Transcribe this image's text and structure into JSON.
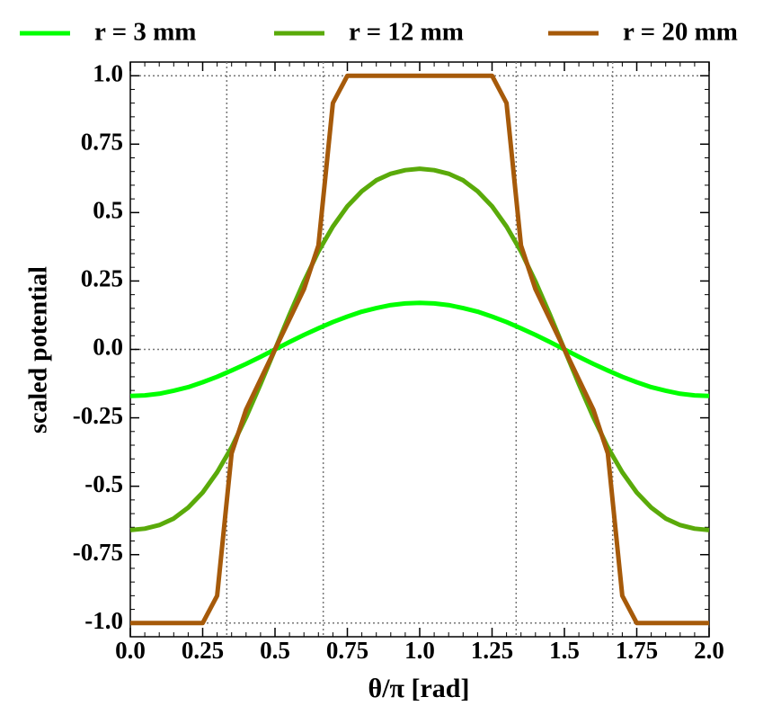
{
  "chart_data": {
    "type": "line",
    "xlabel": "θ/π [rad]",
    "ylabel": "scaled potential",
    "x": [
      0,
      0.05,
      0.1,
      0.15,
      0.2,
      0.25,
      0.3,
      0.35,
      0.4,
      0.45,
      0.5,
      0.55,
      0.6,
      0.65,
      0.7,
      0.75,
      0.8,
      0.85,
      0.9,
      0.95,
      1,
      1.05,
      1.1,
      1.15,
      1.2,
      1.25,
      1.3,
      1.35,
      1.4,
      1.45,
      1.5,
      1.55,
      1.6,
      1.65,
      1.7,
      1.75,
      1.8,
      1.85,
      1.9,
      1.95,
      2
    ],
    "series": [
      {
        "name": "r = 3 mm",
        "color": "#00ff00",
        "values": [
          -0.17,
          -0.168,
          -0.162,
          -0.151,
          -0.138,
          -0.12,
          -0.1,
          -0.077,
          -0.053,
          -0.027,
          0,
          0.027,
          0.053,
          0.077,
          0.1,
          0.12,
          0.138,
          0.151,
          0.162,
          0.168,
          0.17,
          0.168,
          0.162,
          0.151,
          0.138,
          0.12,
          0.1,
          0.077,
          0.053,
          0.027,
          0,
          -0.027,
          -0.053,
          -0.077,
          -0.1,
          -0.12,
          -0.138,
          -0.151,
          -0.162,
          -0.168,
          -0.17
        ]
      },
      {
        "name": "r = 12 mm",
        "color": "#5aaa0a",
        "values": [
          -0.66,
          -0.655,
          -0.642,
          -0.618,
          -0.578,
          -0.523,
          -0.449,
          -0.358,
          -0.248,
          -0.127,
          0,
          0.127,
          0.248,
          0.358,
          0.449,
          0.523,
          0.578,
          0.618,
          0.642,
          0.655,
          0.66,
          0.655,
          0.642,
          0.618,
          0.578,
          0.523,
          0.449,
          0.358,
          0.248,
          0.127,
          0,
          -0.127,
          -0.248,
          -0.358,
          -0.449,
          -0.523,
          -0.578,
          -0.618,
          -0.642,
          -0.655,
          -0.66
        ]
      },
      {
        "name": "r = 20 mm",
        "color": "#a65a0a",
        "values": [
          -1,
          -1,
          -1,
          -1,
          -1,
          -1,
          -0.9,
          -0.38,
          -0.22,
          -0.11,
          0,
          0.11,
          0.22,
          0.38,
          0.9,
          1,
          1,
          1,
          1,
          1,
          1,
          1,
          1,
          1,
          1,
          1,
          0.9,
          0.38,
          0.22,
          0.11,
          0,
          -0.11,
          -0.22,
          -0.38,
          -0.9,
          -1,
          -1,
          -1,
          -1,
          -1,
          -1
        ]
      }
    ],
    "xlim": [
      0,
      2
    ],
    "xticks": [
      {
        "value": 0,
        "label": "0.0"
      },
      0.25,
      0.5,
      0.75,
      {
        "value": 1,
        "label": "1.0"
      },
      1.25,
      1.5,
      1.75,
      {
        "value": 2,
        "label": "2.0"
      }
    ],
    "ylim": [
      -1.05,
      1.05
    ],
    "yticks": [
      {
        "value": -1,
        "label": "-1.0"
      },
      -0.75,
      -0.5,
      -0.25,
      {
        "value": 0,
        "label": "0.0"
      },
      0.25,
      0.5,
      0.75,
      {
        "value": 1,
        "label": "1.0"
      }
    ],
    "vlines": [
      0.3333,
      0.6667,
      1.3333,
      1.6667
    ],
    "hlines": [
      -1,
      0,
      1
    ],
    "legend": "top"
  }
}
